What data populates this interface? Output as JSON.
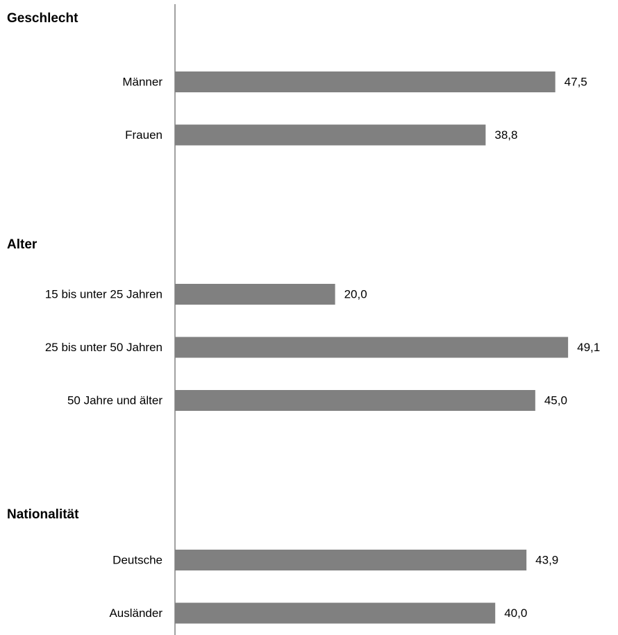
{
  "chart_data": {
    "type": "bar",
    "orientation": "horizontal",
    "bar_color": "#808080",
    "axis_color": "#808080",
    "xlim": [
      0,
      50
    ],
    "grid": false,
    "groups": [
      {
        "title": "Geschlecht",
        "categories": [
          "Männer",
          "Frauen"
        ],
        "values": [
          47.5,
          38.8
        ],
        "value_labels": [
          "47,5",
          "38,8"
        ]
      },
      {
        "title": "Alter",
        "categories": [
          "15 bis unter 25 Jahren",
          "25 bis unter 50 Jahren",
          "50 Jahre und älter"
        ],
        "values": [
          20.0,
          49.1,
          45.0
        ],
        "value_labels": [
          "20,0",
          "49,1",
          "45,0"
        ]
      },
      {
        "title": "Nationalität",
        "categories": [
          "Deutsche",
          "Ausländer"
        ],
        "values": [
          43.9,
          40.0
        ],
        "value_labels": [
          "43,9",
          "40,0"
        ]
      }
    ]
  }
}
